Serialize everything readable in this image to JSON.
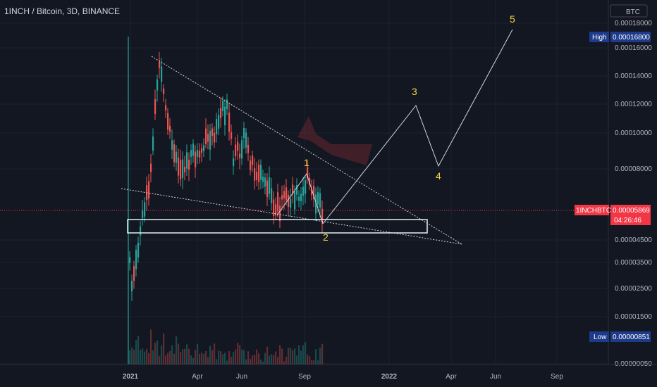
{
  "header": {
    "title": "1INCH / Bitcoin, 3D, BINANCE"
  },
  "price_axis": {
    "currency": "BTC",
    "ticks": [
      "0.00018000",
      "0.00016000",
      "0.00014000",
      "0.00012000",
      "0.00010000",
      "0.00008000",
      "0.00004500",
      "0.00003500",
      "0.00002500",
      "0.00001500",
      "0.00000050"
    ],
    "high_label": "High",
    "high_value": "0.00016800",
    "low_label": "Low",
    "low_value": "0.00000851",
    "symbol": "1INCHBTC",
    "last_value": "0.00005869",
    "countdown": "04:26:46"
  },
  "time_axis": {
    "ticks": [
      "2021",
      "Apr",
      "Jun",
      "Sep",
      "2022",
      "Apr",
      "Jun",
      "Sep"
    ]
  },
  "waves": [
    "1",
    "2",
    "3",
    "4",
    "5"
  ],
  "colors": {
    "background": "#131722",
    "up": "#26a69a",
    "down": "#ef5350",
    "wave_label": "#f6d33f",
    "high_badge": "#1e3a8a",
    "last_badge": "#f23645"
  },
  "chart_data": {
    "type": "candlestick",
    "symbol": "1INCH / Bitcoin",
    "interval": "3D",
    "exchange": "BINANCE",
    "y_unit": "BTC",
    "x_range": [
      "2020-12",
      "2022-10"
    ],
    "high": 0.000168,
    "low": 8.51e-06,
    "last": 5.869e-05,
    "annotations": {
      "elliott_waves": [
        {
          "label": "1",
          "date": "2021-09-01",
          "price": 7.7e-05
        },
        {
          "label": "2",
          "date": "2021-09-30",
          "price": 5.15e-05
        },
        {
          "label": "3",
          "date": "2022-02-28",
          "price": 0.000118
        },
        {
          "label": "4",
          "date": "2022-03-28",
          "price": 7.8e-05
        },
        {
          "label": "5",
          "date": "2022-06-20",
          "price": 0.000173
        }
      ],
      "support_zone": {
        "from": "2020-12-25",
        "to": "2022-02-25",
        "top": 5.3e-05,
        "bottom": 4.6e-05
      }
    }
  }
}
